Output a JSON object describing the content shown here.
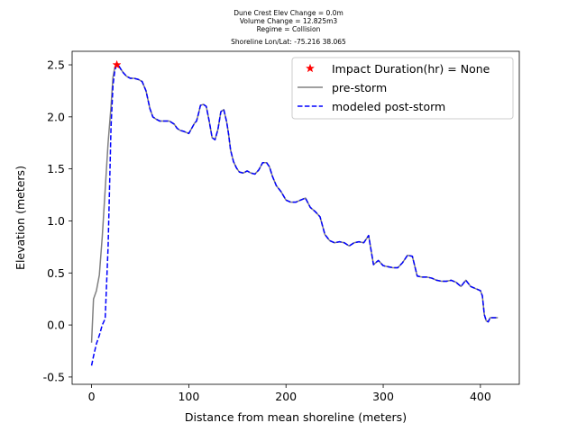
{
  "chart_data": {
    "type": "line",
    "title_lines": [
      "Dune Crest Elev Change = 0.0m",
      "Volume Change = 12.825m3",
      "Regime = Collision",
      "Shoreline Lon/Lat: -75.216 38.065"
    ],
    "xlabel": "Distance from mean shoreline (meters)",
    "ylabel": "Elevation (meters)",
    "xlim": [
      -20,
      440
    ],
    "ylim": [
      -0.57,
      2.63
    ],
    "xticks": [
      0,
      100,
      200,
      300,
      400
    ],
    "yticks": [
      -0.5,
      0.0,
      0.5,
      1.0,
      1.5,
      2.0,
      2.5
    ],
    "grid": false,
    "legend_position": "upper right",
    "legend": [
      {
        "label": "Impact Duration(hr) = None",
        "marker": "star",
        "color": "#ff0000"
      },
      {
        "label": "pre-storm",
        "style": "solid",
        "color": "#808080"
      },
      {
        "label": "modeled post-storm",
        "style": "dashed",
        "color": "#0000ff"
      }
    ],
    "impact_point": {
      "x": 26,
      "y": 2.5
    },
    "pre_storm": {
      "x": [
        0,
        2,
        5,
        8,
        11,
        14,
        17,
        20,
        22,
        24,
        26,
        28,
        30,
        33,
        36,
        40,
        44,
        48,
        52,
        56,
        60,
        63,
        66,
        70,
        75,
        80,
        85,
        88,
        91,
        95,
        100,
        103,
        106,
        108,
        110,
        112,
        115,
        118,
        121,
        124,
        127,
        130,
        133,
        136,
        139,
        141,
        143,
        146,
        149,
        152,
        156,
        160,
        164,
        168,
        172,
        176,
        180,
        183,
        186,
        190,
        195,
        200,
        205,
        210,
        215,
        220,
        225,
        230,
        235,
        240,
        245,
        250,
        255,
        260,
        265,
        270,
        275,
        280,
        285,
        290,
        295,
        300,
        305,
        310,
        315,
        320,
        325,
        330,
        335,
        340,
        345,
        350,
        355,
        360,
        365,
        370,
        375,
        380,
        385,
        390,
        395,
        400,
        402,
        404,
        406,
        408,
        410,
        413,
        416,
        418
      ],
      "y": [
        -0.17,
        0.25,
        0.33,
        0.48,
        0.85,
        1.3,
        1.75,
        2.1,
        2.38,
        2.48,
        2.5,
        2.49,
        2.46,
        2.42,
        2.39,
        2.37,
        2.37,
        2.36,
        2.34,
        2.25,
        2.08,
        2.0,
        1.98,
        1.96,
        1.96,
        1.96,
        1.93,
        1.89,
        1.87,
        1.86,
        1.84,
        1.89,
        1.94,
        1.96,
        2.03,
        2.11,
        2.12,
        2.1,
        1.96,
        1.8,
        1.78,
        1.88,
        2.05,
        2.07,
        1.95,
        1.83,
        1.68,
        1.57,
        1.51,
        1.47,
        1.46,
        1.48,
        1.46,
        1.45,
        1.49,
        1.56,
        1.56,
        1.52,
        1.43,
        1.34,
        1.28,
        1.2,
        1.18,
        1.18,
        1.2,
        1.22,
        1.13,
        1.09,
        1.04,
        0.87,
        0.81,
        0.79,
        0.8,
        0.79,
        0.76,
        0.79,
        0.8,
        0.79,
        0.86,
        0.58,
        0.62,
        0.57,
        0.56,
        0.55,
        0.55,
        0.6,
        0.67,
        0.66,
        0.47,
        0.46,
        0.46,
        0.45,
        0.43,
        0.42,
        0.42,
        0.43,
        0.41,
        0.37,
        0.43,
        0.37,
        0.35,
        0.33,
        0.28,
        0.1,
        0.04,
        0.03,
        0.07,
        0.07,
        0.07,
        0.07
      ]
    },
    "post_storm": {
      "x": [
        0,
        2,
        5,
        8,
        11,
        14,
        17,
        20,
        22,
        24,
        26,
        28,
        30,
        33,
        36,
        40,
        44,
        48,
        52,
        56,
        60,
        63,
        66,
        70,
        75,
        80,
        85,
        88,
        91,
        95,
        100,
        103,
        106,
        108,
        110,
        112,
        115,
        118,
        121,
        124,
        127,
        130,
        133,
        136,
        139,
        141,
        143,
        146,
        149,
        152,
        156,
        160,
        164,
        168,
        172,
        176,
        180,
        183,
        186,
        190,
        195,
        200,
        205,
        210,
        215,
        220,
        225,
        230,
        235,
        240,
        245,
        250,
        255,
        260,
        265,
        270,
        275,
        280,
        285,
        290,
        295,
        300,
        305,
        310,
        315,
        320,
        325,
        330,
        335,
        340,
        345,
        350,
        355,
        360,
        365,
        370,
        375,
        380,
        385,
        390,
        395,
        400,
        402,
        404,
        406,
        408,
        410,
        413,
        416,
        418
      ],
      "y": [
        -0.39,
        -0.3,
        -0.18,
        -0.1,
        0.0,
        0.06,
        0.75,
        1.9,
        2.3,
        2.45,
        2.5,
        2.49,
        2.46,
        2.42,
        2.39,
        2.37,
        2.37,
        2.36,
        2.34,
        2.25,
        2.08,
        2.0,
        1.98,
        1.96,
        1.96,
        1.96,
        1.93,
        1.89,
        1.87,
        1.86,
        1.84,
        1.89,
        1.94,
        1.96,
        2.03,
        2.11,
        2.12,
        2.1,
        1.96,
        1.8,
        1.78,
        1.88,
        2.05,
        2.07,
        1.95,
        1.83,
        1.68,
        1.57,
        1.51,
        1.47,
        1.46,
        1.48,
        1.46,
        1.45,
        1.49,
        1.56,
        1.56,
        1.52,
        1.43,
        1.34,
        1.28,
        1.2,
        1.18,
        1.18,
        1.2,
        1.22,
        1.13,
        1.09,
        1.04,
        0.87,
        0.81,
        0.79,
        0.8,
        0.79,
        0.76,
        0.79,
        0.8,
        0.79,
        0.86,
        0.58,
        0.62,
        0.57,
        0.56,
        0.55,
        0.55,
        0.6,
        0.67,
        0.66,
        0.47,
        0.46,
        0.46,
        0.45,
        0.43,
        0.42,
        0.42,
        0.43,
        0.41,
        0.37,
        0.43,
        0.37,
        0.35,
        0.33,
        0.28,
        0.1,
        0.04,
        0.03,
        0.07,
        0.07,
        0.07,
        0.07
      ]
    }
  }
}
